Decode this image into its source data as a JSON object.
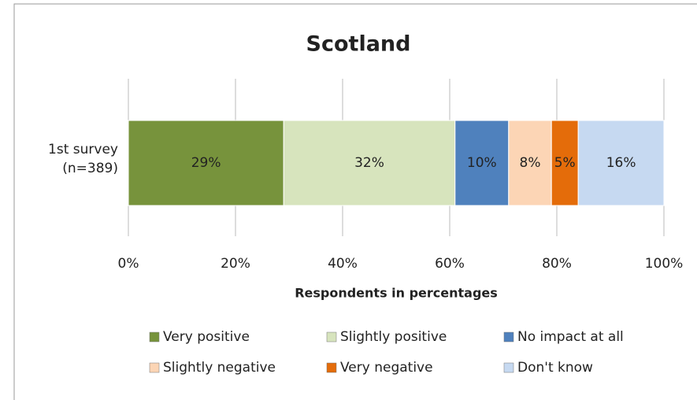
{
  "chart_data": {
    "type": "stacked-bar-horizontal",
    "title": "Scotland",
    "categories": [
      "1st survey\n(n=389)"
    ],
    "x_label": "Respondents in percentages",
    "series": [
      {
        "name": "Very positive",
        "color": "#77933c",
        "values": [
          29
        ],
        "value_labels": [
          "29%"
        ]
      },
      {
        "name": "Slightly positive",
        "color": "#d7e4bd",
        "values": [
          32
        ],
        "value_labels": [
          "32%"
        ]
      },
      {
        "name": "No impact at all",
        "color": "#4f81bd",
        "values": [
          10
        ],
        "value_labels": [
          "10%"
        ]
      },
      {
        "name": "Slightly negative",
        "color": "#fcd5b5",
        "values": [
          8
        ],
        "value_labels": [
          "8%"
        ]
      },
      {
        "name": "Very negative",
        "color": "#e46c0a",
        "values": [
          5
        ],
        "value_labels": [
          "5%"
        ]
      },
      {
        "name": "Don't know",
        "color": "#c6d9f1",
        "values": [
          16
        ],
        "value_labels": [
          "16%"
        ]
      }
    ],
    "xlim": [
      0,
      100
    ],
    "xticks": [
      {
        "value": 0,
        "label": "0%"
      },
      {
        "value": 20,
        "label": "20%"
      },
      {
        "value": 40,
        "label": "40%"
      },
      {
        "value": 60,
        "label": "60%"
      },
      {
        "value": 80,
        "label": "80%"
      },
      {
        "value": 100,
        "label": "100%"
      }
    ],
    "grid": true,
    "legend": "bottom"
  }
}
